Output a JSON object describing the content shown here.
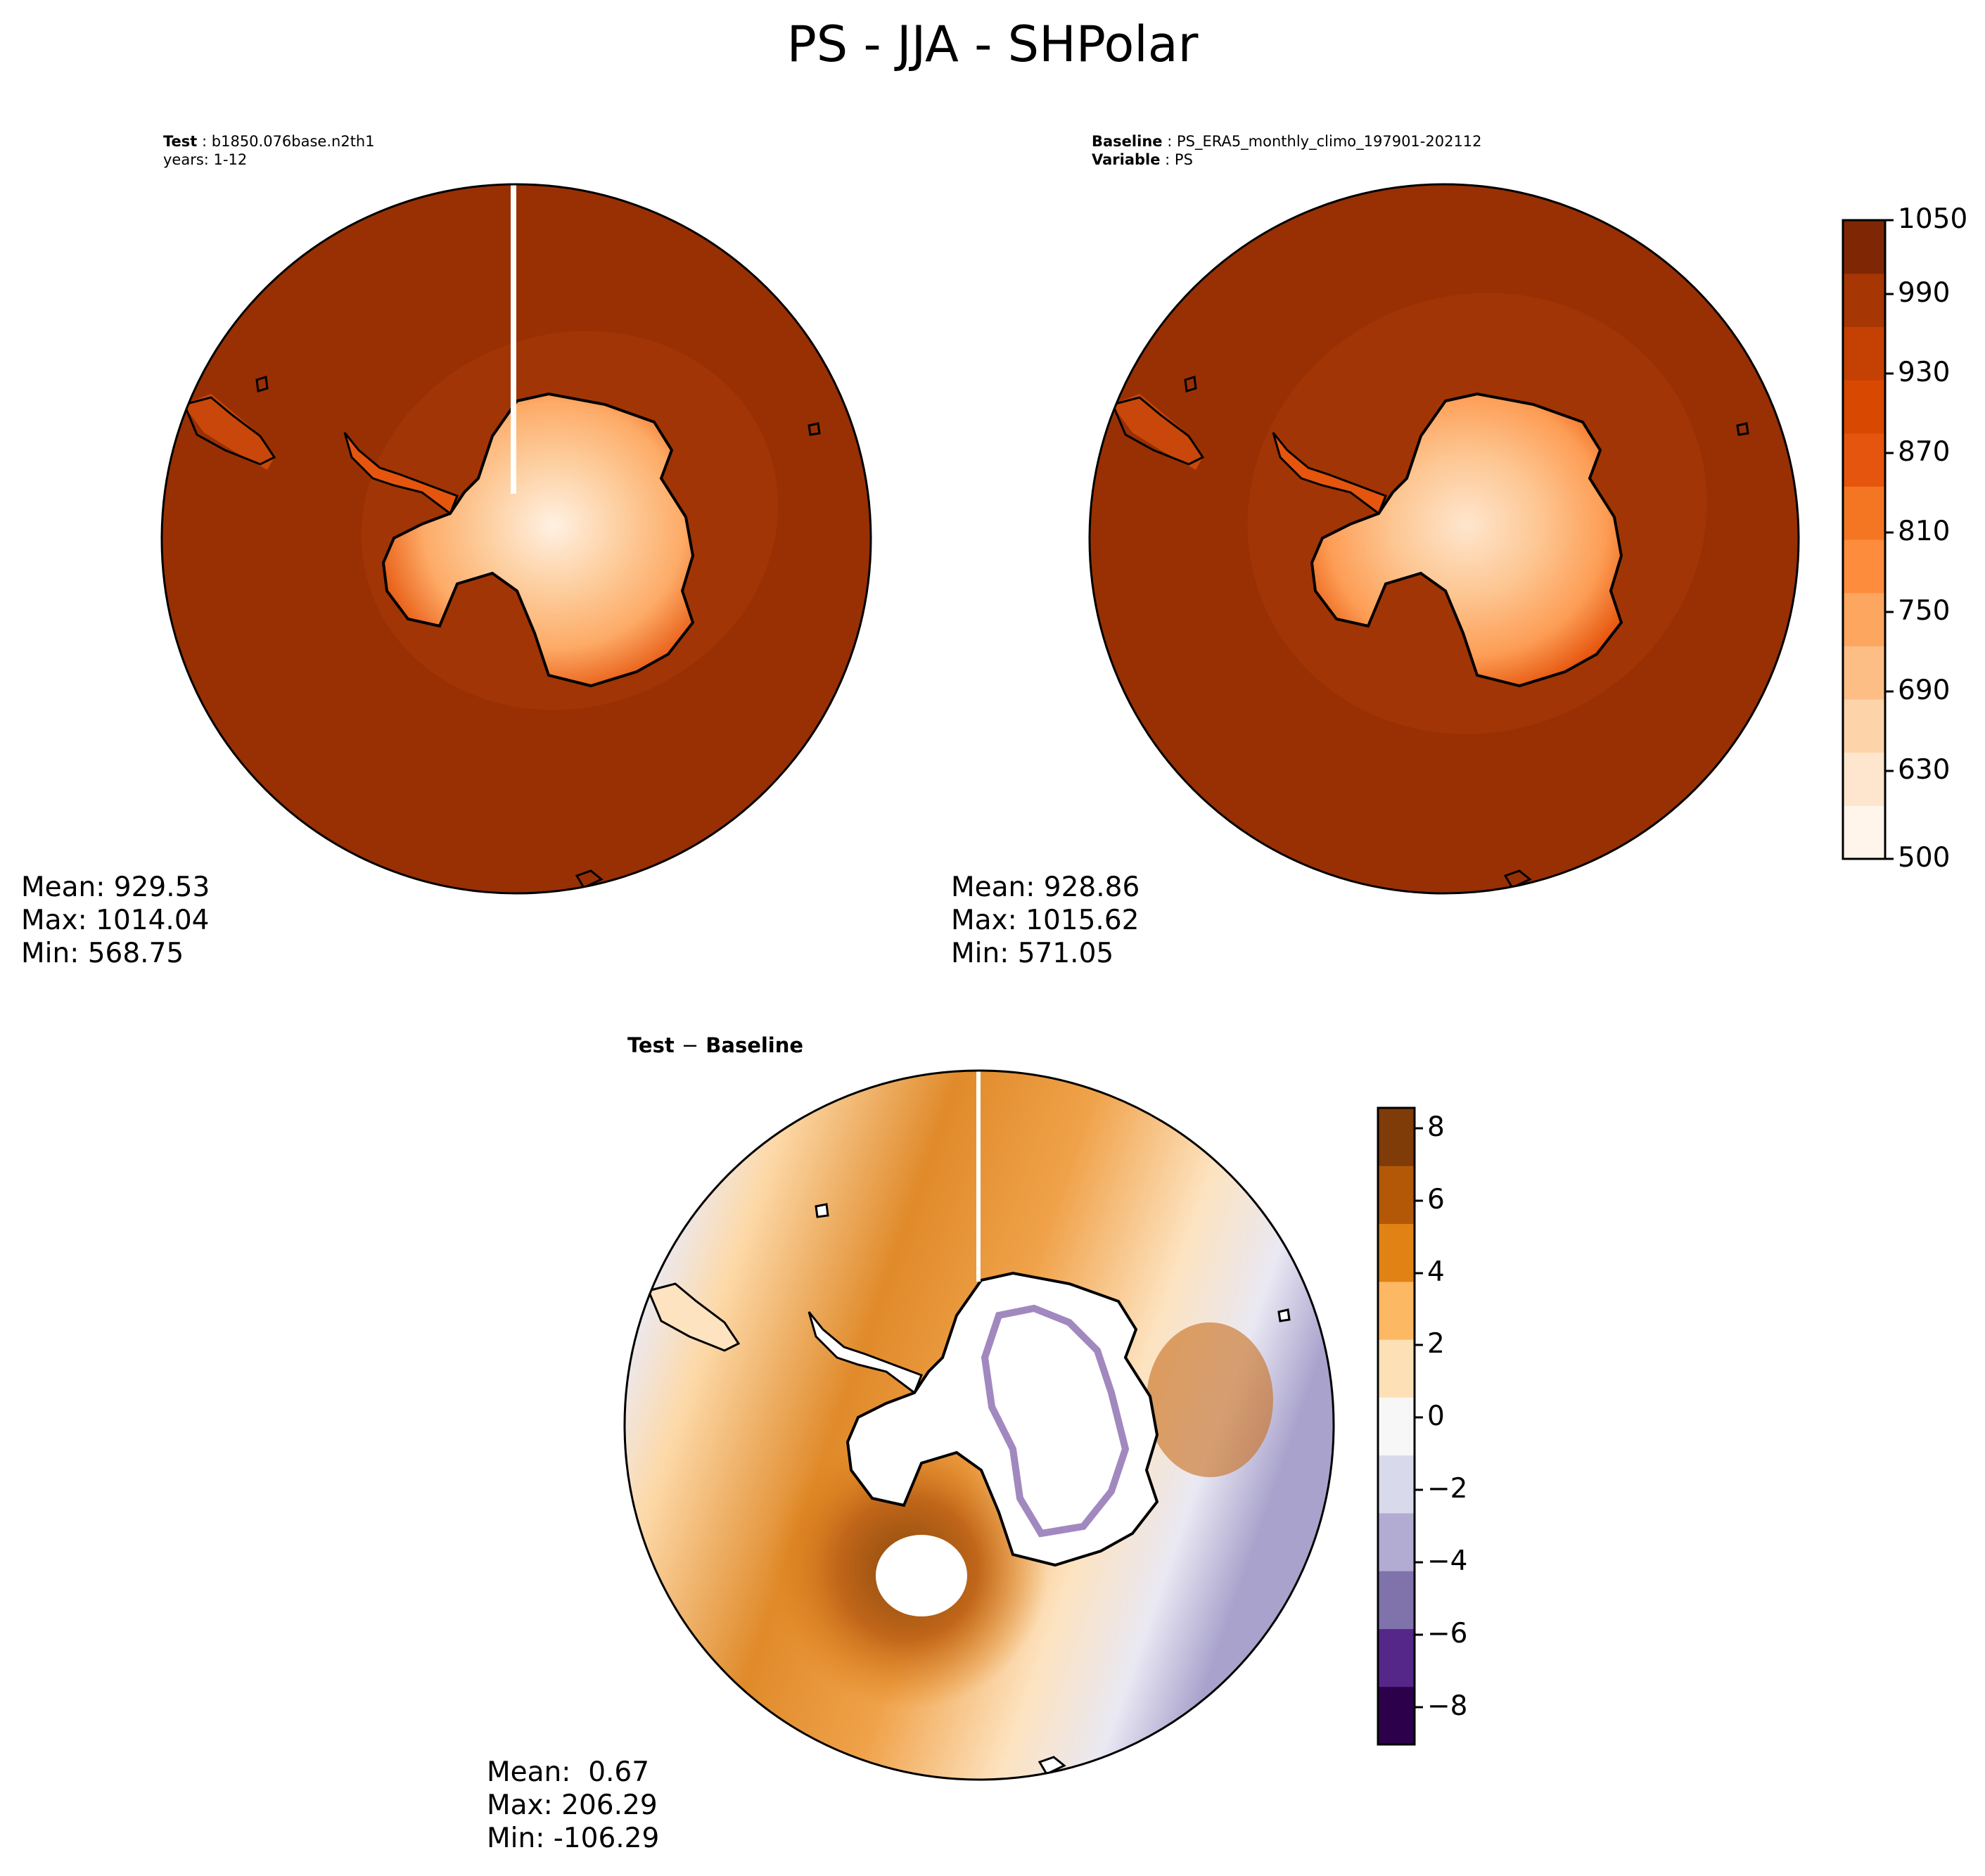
{
  "figure": {
    "title": "PS - JJA - SHPolar"
  },
  "panels": {
    "test": {
      "header_label": "Test",
      "header_value": "b1850.076base.n2th1",
      "years_line": "years: 1-12",
      "stats": [
        "Mean: 929.53",
        "Max: 1014.04",
        "Min: 568.75"
      ]
    },
    "baseline": {
      "header_label": "Baseline",
      "header_value": "PS_ERA5_monthly_climo_197901-202112",
      "variable_label": "Variable",
      "variable_value": "PS",
      "stats": [
        "Mean: 928.86",
        "Max: 1015.62",
        "Min: 571.05"
      ]
    },
    "diff": {
      "title_left": "Test",
      "title_op": "−",
      "title_right": "Baseline",
      "stats": [
        "Mean:  0.67",
        "Max: 206.29",
        "Min: -106.29"
      ]
    }
  },
  "colorbars": {
    "main": {
      "ticks": [
        "1050",
        "990",
        "930",
        "870",
        "810",
        "750",
        "690",
        "630",
        "500"
      ],
      "colors": [
        "#fff5eb",
        "#fee6ce",
        "#fdd4aa",
        "#fdbe85",
        "#fda660",
        "#fd8d3c",
        "#f57622",
        "#e6550d",
        "#d94801",
        "#c44103",
        "#a63603",
        "#7f2704"
      ]
    },
    "diff": {
      "ticks": [
        "8",
        "6",
        "4",
        "2",
        "0",
        "−2",
        "−4",
        "−6",
        "−8"
      ],
      "colors": [
        "#2d004b",
        "#542788",
        "#8073ac",
        "#b2abd2",
        "#d8daeb",
        "#f7f7f7",
        "#fee0b6",
        "#fdb863",
        "#e08214",
        "#b35806",
        "#7f3b08"
      ]
    }
  },
  "chart_data": {
    "type": "heatmap",
    "title": "PS - JJA - SHPolar",
    "projection": "south polar stereographic",
    "maps": [
      {
        "name": "Test",
        "mean": 929.53,
        "max": 1014.04,
        "min": 568.75
      },
      {
        "name": "Baseline",
        "mean": 928.86,
        "max": 1015.62,
        "min": 571.05
      },
      {
        "name": "Test - Baseline",
        "mean": 0.67,
        "max": 206.29,
        "min": -106.29
      }
    ],
    "colorbar_main_range": [
      500,
      1050
    ],
    "colorbar_diff_range": [
      -9,
      8.5
    ]
  }
}
